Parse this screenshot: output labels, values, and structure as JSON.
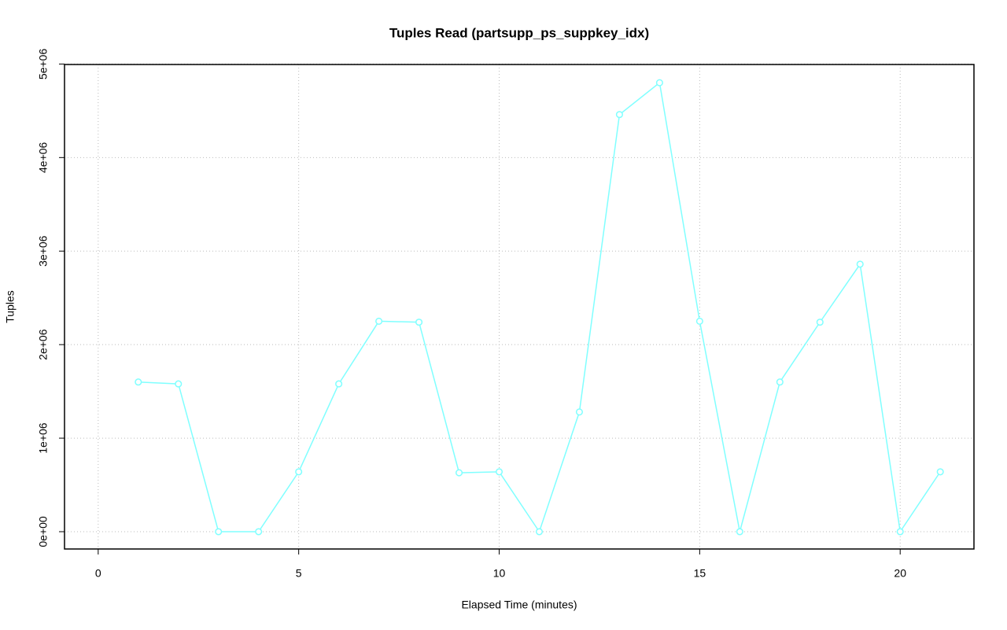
{
  "chart_data": {
    "type": "line",
    "title": "Tuples Read (partsupp_ps_suppkey_idx)",
    "x_label": "Elapsed Time (minutes)",
    "y_label": "Tuples",
    "x": [
      1,
      2,
      3,
      4,
      5,
      6,
      7,
      8,
      9,
      10,
      11,
      12,
      13,
      14,
      15,
      16,
      17,
      18,
      19,
      20,
      21
    ],
    "series": [
      {
        "color": "#80ffff",
        "values": [
          1600000,
          1580000,
          0,
          0,
          640000,
          1580000,
          2250000,
          2240000,
          630000,
          640000,
          0,
          1280000,
          4460000,
          4800000,
          2250000,
          0,
          1600000,
          2240000,
          2860000,
          0,
          640000
        ]
      }
    ],
    "xlim": [
      -0.84,
      21.84
    ],
    "xticks": [
      0,
      5,
      10,
      15,
      20
    ],
    "ylim": [
      -185000,
      4995000
    ],
    "yticks": [
      {
        "value": 0,
        "label": "0e+00"
      },
      {
        "value": 1000000,
        "label": "1e+06"
      },
      {
        "value": 2000000,
        "label": "2e+06"
      },
      {
        "value": 3000000,
        "label": "3e+06"
      },
      {
        "value": 4000000,
        "label": "4e+06"
      },
      {
        "value": 5000000,
        "label": "5e+06"
      }
    ],
    "grid": true
  }
}
